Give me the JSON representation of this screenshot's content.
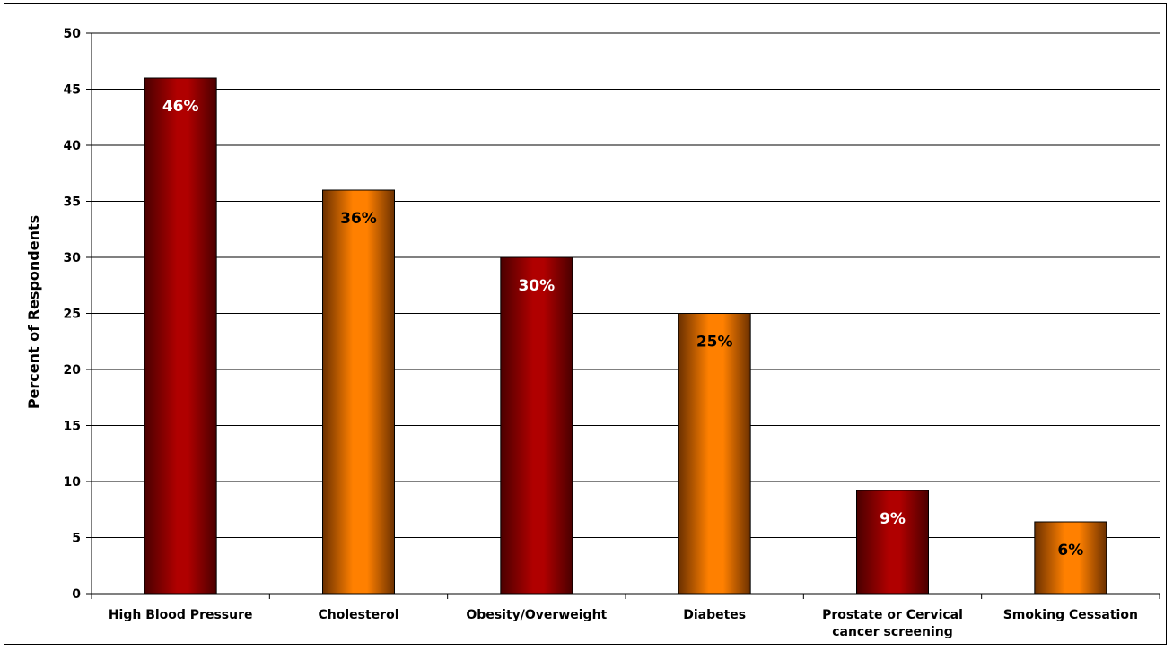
{
  "chart_data": {
    "type": "bar",
    "categories": [
      [
        "High Blood Pressure"
      ],
      [
        "Cholesterol"
      ],
      [
        "Obesity/Overweight"
      ],
      [
        "Diabetes"
      ],
      [
        "Prostate or Cervical",
        "cancer screening"
      ],
      [
        "Smoking Cessation"
      ]
    ],
    "values": [
      46,
      36,
      30,
      25,
      9.2,
      6.4
    ],
    "data_labels": [
      "46%",
      "36%",
      "30%",
      "25%",
      "9%",
      "6%"
    ],
    "title": "",
    "xlabel": "",
    "ylabel": "Percent of Respondents",
    "ylim": [
      0,
      50
    ],
    "yticks": [
      0,
      5,
      10,
      15,
      20,
      25,
      30,
      35,
      40,
      45,
      50
    ],
    "grid": true,
    "legend": "none",
    "bar_colors": [
      "#b00000",
      "#ff8000",
      "#b00000",
      "#ff8000",
      "#b00000",
      "#ff8000"
    ],
    "label_colors": [
      "#ffffff",
      "#000000",
      "#ffffff",
      "#000000",
      "#ffffff",
      "#000000"
    ]
  }
}
